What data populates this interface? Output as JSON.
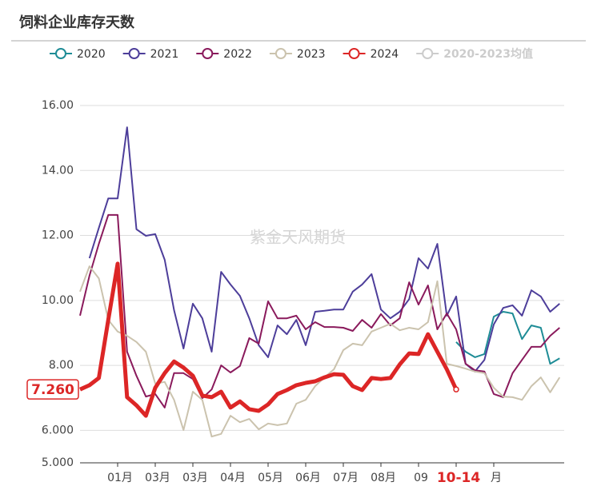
{
  "chart_data": {
    "type": "line",
    "title": "饲料企业库存天数",
    "watermark": "紫金天风期货",
    "categories": [
      null,
      null,
      null,
      null,
      "01月",
      null,
      null,
      null,
      "03月",
      null,
      null,
      null,
      "03月",
      null,
      null,
      null,
      "04月",
      null,
      null,
      null,
      "05月",
      null,
      null,
      null,
      "06月",
      null,
      null,
      null,
      "07月",
      null,
      null,
      null,
      "08月",
      null,
      null,
      null,
      "09",
      null,
      null,
      null,
      "10-14",
      null,
      null,
      null,
      "月",
      null,
      null,
      null,
      null,
      null,
      null,
      null
    ],
    "highlight_category": "10-14",
    "axis_pointer": {
      "value": 7.26,
      "label": "7.260"
    },
    "ylim": [
      5,
      16
    ],
    "yticks": [
      {
        "value": 5,
        "label": "5.000"
      },
      {
        "value": 6,
        "label": "6.000"
      },
      {
        "value": 8,
        "label": "8.00"
      },
      {
        "value": 10,
        "label": "10.00"
      },
      {
        "value": 12,
        "label": "12.00"
      },
      {
        "value": 14,
        "label": "14.00"
      },
      {
        "value": 16,
        "label": "16.00"
      }
    ],
    "grid": true,
    "series": [
      {
        "name": "2020",
        "color": "#1e8c96",
        "line_width": 2,
        "values": [
          null,
          null,
          null,
          null,
          null,
          null,
          null,
          null,
          null,
          null,
          null,
          null,
          null,
          null,
          null,
          null,
          null,
          null,
          null,
          null,
          null,
          null,
          null,
          null,
          null,
          null,
          null,
          null,
          null,
          null,
          null,
          null,
          null,
          null,
          null,
          null,
          null,
          null,
          null,
          null,
          8.72,
          8.42,
          8.25,
          8.35,
          9.5,
          9.65,
          9.6,
          8.81,
          9.23,
          9.16,
          8.05,
          8.22
        ]
      },
      {
        "name": "2021",
        "color": "#4d3e9a",
        "line_width": 2,
        "values": [
          null,
          11.3,
          12.23,
          13.14,
          13.14,
          15.33,
          12.19,
          11.99,
          12.04,
          11.25,
          9.7,
          8.52,
          9.9,
          9.45,
          8.42,
          10.88,
          10.49,
          10.14,
          9.45,
          8.62,
          8.25,
          9.23,
          8.96,
          9.4,
          8.62,
          9.65,
          9.68,
          9.72,
          9.72,
          10.27,
          10.49,
          10.81,
          9.72,
          9.45,
          9.65,
          10.04,
          11.3,
          10.98,
          11.74,
          9.53,
          10.12,
          8.05,
          7.81,
          8.17,
          9.26,
          9.77,
          9.85,
          9.53,
          10.31,
          10.12,
          9.65,
          9.9
        ]
      },
      {
        "name": "2022",
        "color": "#8a1a5c",
        "line_width": 2,
        "values": [
          9.53,
          10.76,
          11.74,
          12.63,
          12.63,
          8.42,
          7.68,
          7.04,
          7.12,
          6.7,
          7.76,
          7.76,
          7.58,
          6.99,
          7.26,
          8.0,
          7.78,
          7.98,
          8.84,
          8.67,
          9.97,
          9.45,
          9.45,
          9.53,
          9.11,
          9.33,
          9.18,
          9.18,
          9.16,
          9.06,
          9.4,
          9.16,
          9.58,
          9.23,
          9.45,
          10.56,
          9.87,
          10.46,
          9.11,
          9.6,
          9.11,
          8.05,
          7.85,
          7.81,
          7.12,
          7.02,
          7.76,
          8.17,
          8.57,
          8.57,
          8.91,
          9.16
        ]
      },
      {
        "name": "2023",
        "color": "#cbc3ae",
        "line_width": 2,
        "values": [
          10.27,
          11.05,
          10.68,
          9.4,
          9.04,
          8.91,
          8.72,
          8.42,
          7.44,
          7.49,
          6.94,
          6.01,
          7.19,
          6.94,
          5.81,
          5.89,
          6.45,
          6.25,
          6.35,
          6.03,
          6.21,
          6.16,
          6.21,
          6.82,
          6.94,
          7.36,
          7.63,
          7.88,
          8.47,
          8.67,
          8.62,
          9.04,
          9.16,
          9.28,
          9.08,
          9.16,
          9.11,
          9.33,
          10.59,
          8.05,
          7.98,
          7.9,
          7.81,
          7.76,
          7.31,
          7.04,
          7.02,
          6.94,
          7.36,
          7.63,
          7.17,
          7.63
        ]
      },
      {
        "name": "2024",
        "color": "#dc2626",
        "line_width": 5,
        "values": [
          7.26,
          7.39,
          7.61,
          9.4,
          11.13,
          7.02,
          6.77,
          6.45,
          7.31,
          7.76,
          8.12,
          7.93,
          7.68,
          7.07,
          7.02,
          7.19,
          6.7,
          6.89,
          6.65,
          6.6,
          6.8,
          7.12,
          7.24,
          7.39,
          7.46,
          7.51,
          7.63,
          7.73,
          7.71,
          7.36,
          7.24,
          7.61,
          7.58,
          7.61,
          8.03,
          8.37,
          8.35,
          8.96,
          8.42,
          7.88,
          7.26,
          null,
          null,
          null,
          null,
          null,
          null,
          null,
          null,
          null,
          null,
          null
        ]
      },
      {
        "name": "2020-2023均值",
        "color": "#cccccc",
        "hidden": true,
        "line_width": 2,
        "values": [
          null,
          null,
          null,
          null,
          null,
          null,
          null,
          null,
          null,
          null,
          null,
          null,
          null,
          null,
          null,
          null,
          null,
          null,
          null,
          null,
          null,
          null,
          null,
          null,
          null,
          null,
          null,
          null,
          null,
          null,
          null,
          null,
          null,
          null,
          null,
          null,
          null,
          null,
          null,
          null,
          null,
          null,
          null,
          null,
          null,
          null,
          null,
          null,
          null,
          null,
          null,
          null
        ]
      }
    ]
  }
}
